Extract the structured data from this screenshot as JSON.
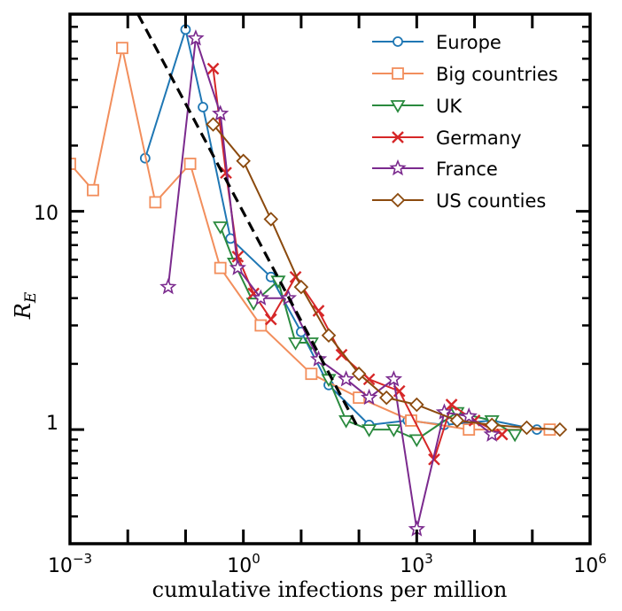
{
  "chart_data": {
    "type": "line",
    "xscale": "log",
    "yscale": "log",
    "xlabel": "cumulative infections per million",
    "ylabel_base": "R",
    "ylabel_sub": "E",
    "xlim": [
      0.001,
      1000000
    ],
    "ylim": [
      0.3,
      80
    ],
    "x_ticks": [
      {
        "value": 0.001,
        "base": "10",
        "exp": "−3"
      },
      {
        "value": 1,
        "base": "10",
        "exp": "0"
      },
      {
        "value": 1000,
        "base": "10",
        "exp": "3"
      },
      {
        "value": 1000000,
        "base": "10",
        "exp": "6"
      }
    ],
    "y_ticks": [
      {
        "value": 1,
        "label": "1"
      },
      {
        "value": 10,
        "label": "10"
      }
    ],
    "legend_position": "top-right",
    "series": [
      {
        "name": "Europe",
        "color": "#1f77b4",
        "marker": "circle",
        "x": [
          0.02,
          0.1,
          0.2,
          0.6,
          3,
          10,
          30,
          150,
          700,
          3000,
          20000,
          120000
        ],
        "y": [
          17.5,
          68,
          30,
          7.5,
          5,
          2.8,
          1.6,
          1.05,
          1.1,
          1.05,
          1.1,
          1.0
        ]
      },
      {
        "name": "Big countries",
        "color": "#f28e5c",
        "marker": "square",
        "x": [
          0.001,
          0.0025,
          0.008,
          0.03,
          0.12,
          0.4,
          2,
          15,
          100,
          800,
          8000,
          200000
        ],
        "y": [
          16.5,
          12.5,
          56,
          11,
          16.5,
          5.5,
          3,
          1.8,
          1.4,
          1.1,
          1.0,
          1.0
        ]
      },
      {
        "name": "UK",
        "color": "#2a8a3e",
        "marker": "triangle-down",
        "x": [
          0.4,
          0.7,
          1.5,
          4,
          8,
          15,
          30,
          60,
          150,
          400,
          1000,
          5000,
          20000,
          50000
        ],
        "y": [
          8.5,
          5.8,
          3.8,
          4.8,
          2.5,
          2.5,
          1.7,
          1.1,
          1.0,
          1.0,
          0.9,
          1.2,
          1.1,
          0.95
        ]
      },
      {
        "name": "Germany",
        "color": "#d62728",
        "marker": "x",
        "x": [
          0.3,
          0.5,
          0.8,
          1.5,
          3,
          8,
          20,
          50,
          150,
          500,
          2000,
          4000,
          10000,
          30000
        ],
        "y": [
          45,
          15,
          6.2,
          4.2,
          3.2,
          5,
          3.5,
          2.2,
          1.7,
          1.5,
          0.73,
          1.3,
          1.1,
          0.95
        ]
      },
      {
        "name": "France",
        "color": "#7b2a8e",
        "marker": "star",
        "x": [
          0.05,
          0.15,
          0.4,
          0.8,
          2,
          6,
          20,
          60,
          150,
          400,
          1000,
          3000,
          8000,
          20000
        ],
        "y": [
          4.5,
          62,
          28,
          5.5,
          4,
          4,
          2.1,
          1.7,
          1.4,
          1.7,
          0.35,
          1.2,
          1.15,
          0.95
        ]
      },
      {
        "name": "US counties",
        "color": "#8b4a0e",
        "marker": "diamond",
        "x": [
          0.3,
          1,
          3,
          10,
          30,
          100,
          300,
          1000,
          5000,
          20000,
          80000,
          300000
        ],
        "y": [
          25,
          17,
          9.2,
          4.5,
          2.7,
          1.8,
          1.4,
          1.3,
          1.1,
          1.05,
          1.02,
          1.0
        ]
      }
    ],
    "reference_line": {
      "style": "dashed",
      "x": [
        0.015,
        100
      ],
      "y": [
        80,
        1
      ]
    }
  }
}
